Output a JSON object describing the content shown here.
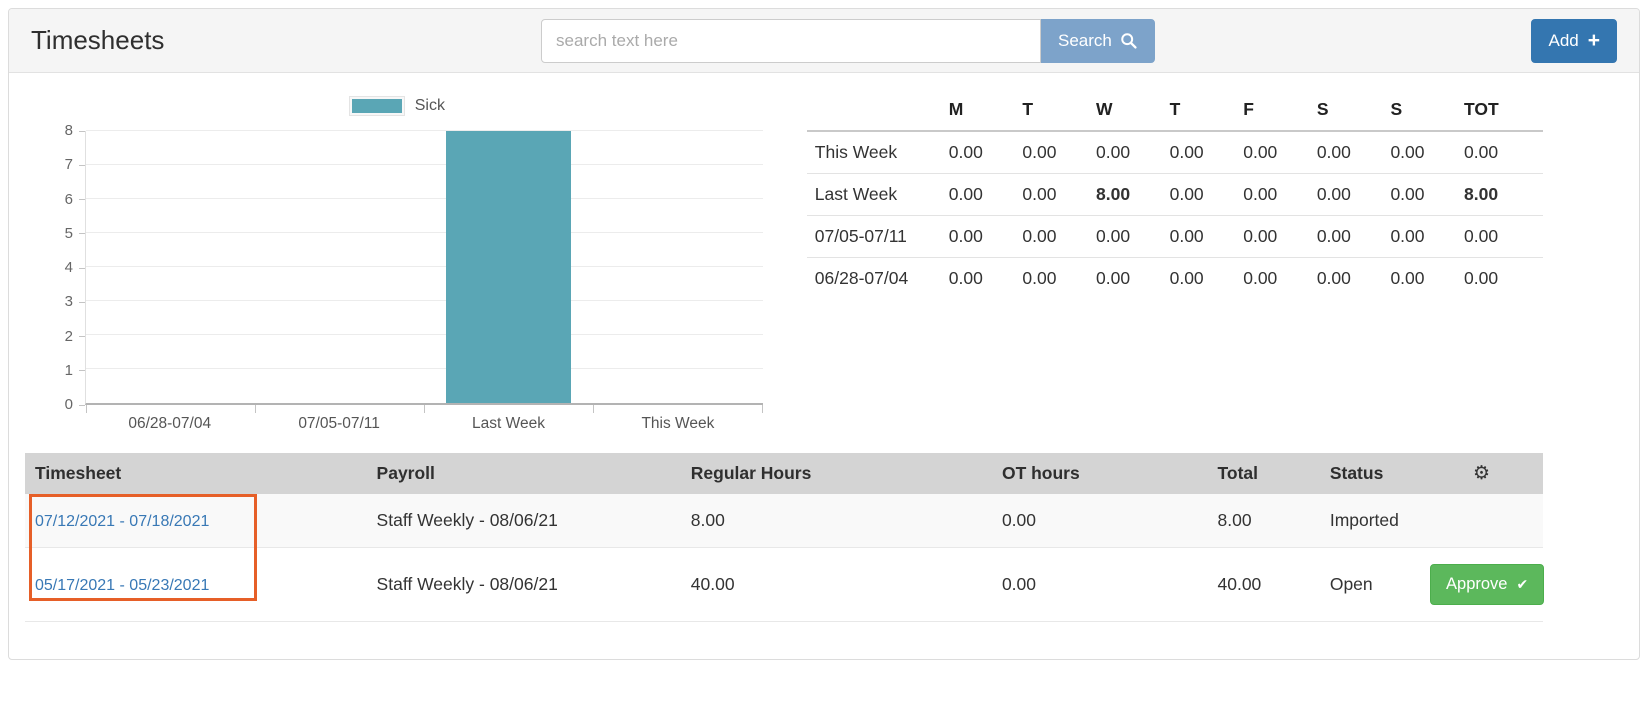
{
  "header": {
    "title": "Timesheets",
    "search": {
      "placeholder": "search text here",
      "button_label": "Search"
    },
    "add_button_label": "Add"
  },
  "icons": {
    "search": "magnifier",
    "add_plus": "+",
    "settings_gear": "⚙",
    "approve_check": "✔"
  },
  "chart_data": {
    "type": "bar",
    "title": "",
    "categories": [
      "06/28-07/04",
      "07/05-07/11",
      "Last Week",
      "This Week"
    ],
    "series": [
      {
        "name": "Sick",
        "values": [
          0,
          0,
          8,
          0
        ],
        "color": "#5aa6b5"
      }
    ],
    "xlabel": "",
    "ylabel": "",
    "ylim": [
      0,
      8
    ],
    "yticks": [
      0,
      1,
      2,
      3,
      4,
      5,
      6,
      7,
      8
    ],
    "grid": true,
    "legend_position": "top-center"
  },
  "week_summary": {
    "columns": [
      "M",
      "T",
      "W",
      "T",
      "F",
      "S",
      "S",
      "TOT"
    ],
    "rows": [
      {
        "label": "This Week",
        "values": [
          "0.00",
          "0.00",
          "0.00",
          "0.00",
          "0.00",
          "0.00",
          "0.00",
          "0.00"
        ],
        "bold_indexes": []
      },
      {
        "label": "Last Week",
        "values": [
          "0.00",
          "0.00",
          "8.00",
          "0.00",
          "0.00",
          "0.00",
          "0.00",
          "8.00"
        ],
        "bold_indexes": [
          2,
          7
        ]
      },
      {
        "label": "07/05-07/11",
        "values": [
          "0.00",
          "0.00",
          "0.00",
          "0.00",
          "0.00",
          "0.00",
          "0.00",
          "0.00"
        ],
        "bold_indexes": []
      },
      {
        "label": "06/28-07/04",
        "values": [
          "0.00",
          "0.00",
          "0.00",
          "0.00",
          "0.00",
          "0.00",
          "0.00",
          "0.00"
        ],
        "bold_indexes": []
      }
    ]
  },
  "timesheets_table": {
    "columns": [
      "Timesheet",
      "Payroll",
      "Regular Hours",
      "OT hours",
      "Total",
      "Status",
      ""
    ],
    "rows": [
      {
        "timesheet": "07/12/2021 - 07/18/2021",
        "payroll": "Staff Weekly - 08/06/21",
        "regular_hours": "8.00",
        "ot_hours": "0.00",
        "total": "8.00",
        "status": "Imported",
        "action": null
      },
      {
        "timesheet": "05/17/2021 - 05/23/2021",
        "payroll": "Staff Weekly - 08/06/21",
        "regular_hours": "40.00",
        "ot_hours": "0.00",
        "total": "40.00",
        "status": "Open",
        "action": "Approve"
      }
    ]
  },
  "colors": {
    "accent-blue": "#3476b0",
    "search-btn": "#7da3ca",
    "approve-green": "#5cb85c",
    "link-blue": "#3878b5",
    "bar-teal": "#5aa6b5",
    "highlight-orange": "#e65f28",
    "table-header-bg": "#d4d4d4"
  }
}
